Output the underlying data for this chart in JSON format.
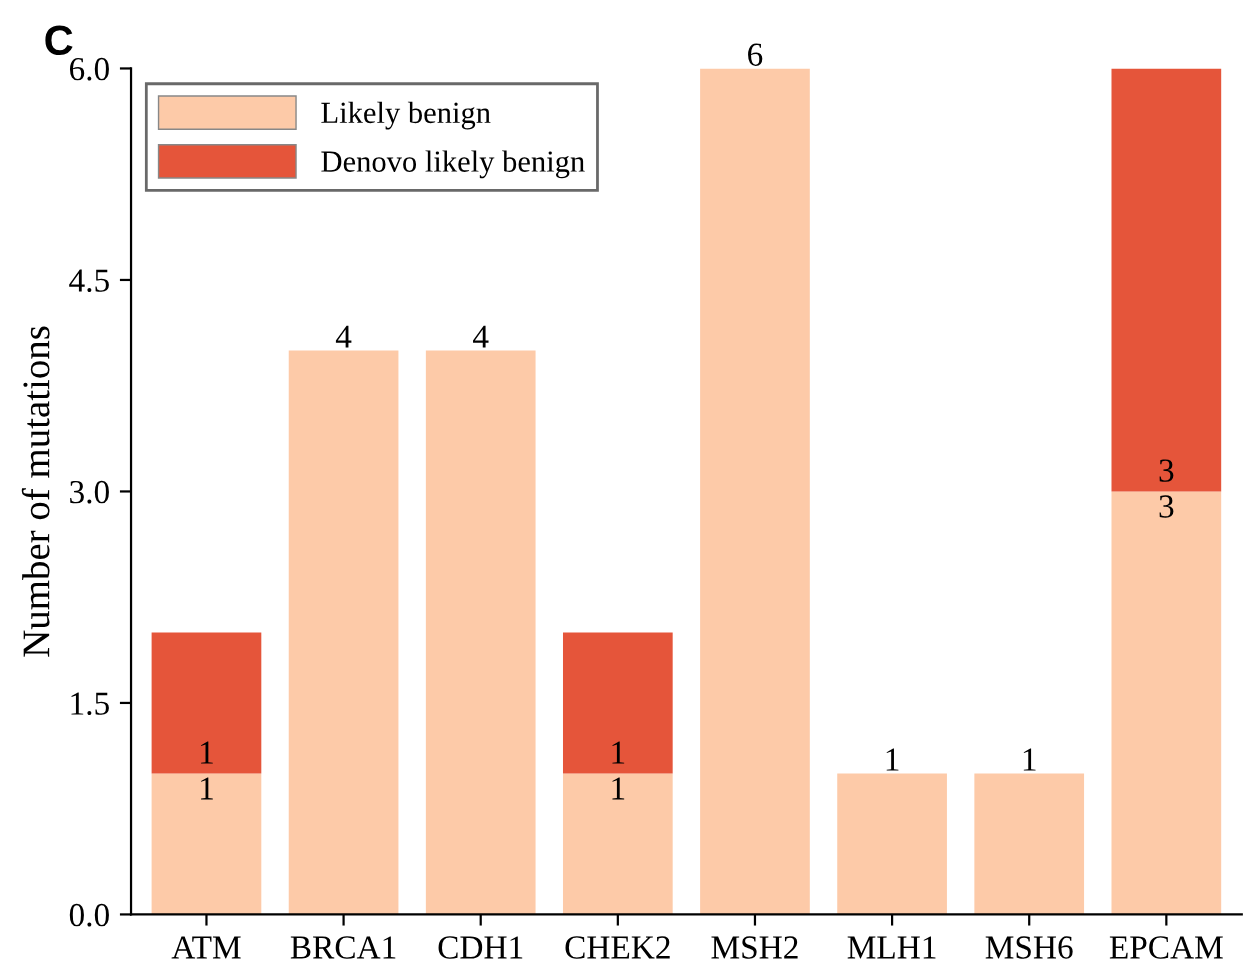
{
  "chart_data": {
    "type": "bar",
    "title": "C",
    "ylabel": "Number of mutations",
    "categories": [
      "ATM",
      "BRCA1",
      "CDH1",
      "CHEK2",
      "MSH2",
      "MLH1",
      "MSH6",
      "EPCAM"
    ],
    "stacked": true,
    "series": [
      {
        "name": "Likely benign",
        "color": "#fdcaa8",
        "values": [
          1,
          4,
          4,
          1,
          6,
          1,
          1,
          3
        ],
        "value_labels": [
          "1",
          "4",
          "4",
          "1",
          "6",
          "1",
          "1",
          "3"
        ]
      },
      {
        "name": "Denovo likely benign",
        "color": "#e5553a",
        "values": [
          1,
          0,
          0,
          1,
          0,
          0,
          0,
          3
        ],
        "value_labels": [
          "1",
          null,
          null,
          "1",
          null,
          null,
          null,
          "3"
        ]
      }
    ],
    "ylim": [
      0,
      6
    ],
    "yticks": [
      {
        "value": 0,
        "label": "0.0"
      },
      {
        "value": 1.5,
        "label": "1.5"
      },
      {
        "value": 3,
        "label": "3.0"
      },
      {
        "value": 4.5,
        "label": "4.5"
      },
      {
        "value": 6,
        "label": "6.0"
      }
    ],
    "grid": false,
    "legend": "top left"
  }
}
